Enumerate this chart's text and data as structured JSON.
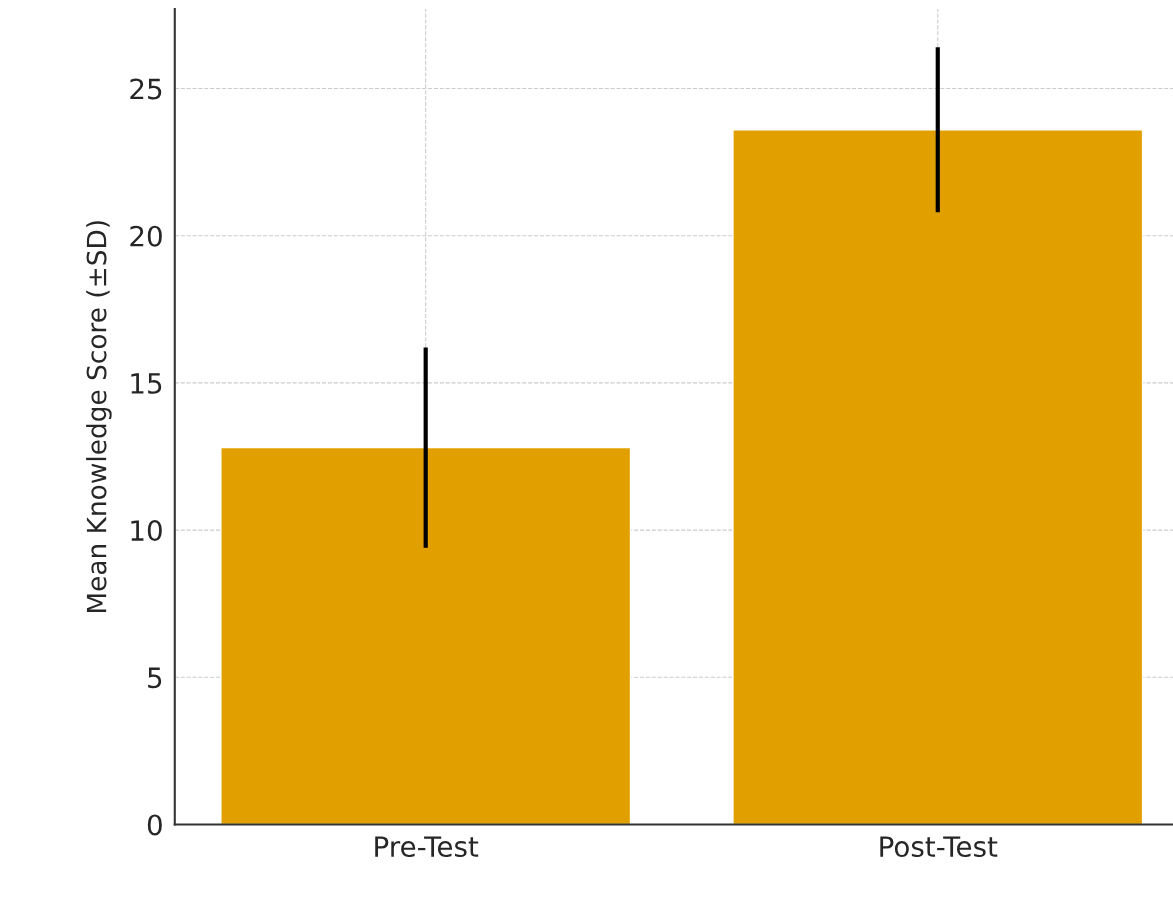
{
  "chart_data": {
    "type": "bar",
    "ylabel": "Mean Knowledge Score (±SD)",
    "categories": [
      "Pre-Test",
      "Post-Test"
    ],
    "values": [
      12.8,
      23.6
    ],
    "errors": [
      3.4,
      2.8
    ],
    "color": "#e1a000",
    "ylim": [
      0,
      27.7
    ],
    "yticks": [
      0,
      5,
      10,
      15,
      20,
      25
    ],
    "grid": true
  }
}
